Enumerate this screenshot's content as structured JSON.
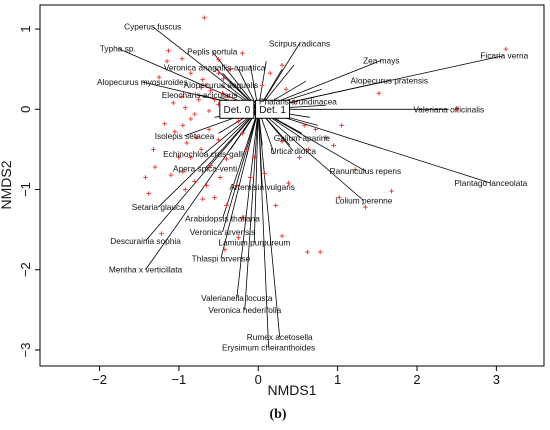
{
  "panel_caption": "(b)",
  "chart_data": {
    "type": "scatter",
    "title": "",
    "xlabel": "NMDS1",
    "ylabel": "NMDS2",
    "xlim": [
      -2.75,
      3.6
    ],
    "ylim": [
      -3.2,
      1.3
    ],
    "xticks": [
      -2,
      -1,
      0,
      1,
      2,
      3
    ],
    "yticks": [
      -3,
      -2,
      -1,
      0,
      1
    ],
    "grid": false,
    "colors": {
      "points": "#e8332e",
      "vectors": "#000000",
      "frame": "#000000"
    },
    "centroids": [
      {
        "label": "Det. 0",
        "x": -0.27,
        "y": 0.0
      },
      {
        "label": "Det. 1",
        "x": 0.18,
        "y": 0.0
      }
    ],
    "species": [
      {
        "name": "Cyperus fuscus",
        "x": -1.33,
        "y": 1.03
      },
      {
        "name": "Typha sp.",
        "x": -1.77,
        "y": 0.76
      },
      {
        "name": "Peplis portula",
        "x": -0.58,
        "y": 0.72
      },
      {
        "name": "Scirpus radicans",
        "x": 0.52,
        "y": 0.82
      },
      {
        "name": "Zea mays",
        "x": 1.55,
        "y": 0.61
      },
      {
        "name": "Ficaria verna",
        "x": 3.1,
        "y": 0.67
      },
      {
        "name": "Veronica anagallis-aquatica",
        "x": -0.55,
        "y": 0.52
      },
      {
        "name": "Alopecurus pratensis",
        "x": 1.65,
        "y": 0.36
      },
      {
        "name": "Alopecurus myosuroides",
        "x": -1.46,
        "y": 0.34
      },
      {
        "name": "Alopecurus aequalis",
        "x": -0.47,
        "y": 0.3
      },
      {
        "name": "Eleocharis acicularis",
        "x": -0.74,
        "y": 0.18
      },
      {
        "name": "Phalaris arundinacea",
        "x": 0.5,
        "y": 0.1
      },
      {
        "name": "Valeriana officinalis",
        "x": 2.4,
        "y": 0.0
      },
      {
        "name": "Isolepis setacea",
        "x": -0.93,
        "y": -0.33
      },
      {
        "name": "Galium aparine",
        "x": 0.55,
        "y": -0.36
      },
      {
        "name": "Urtica dioica",
        "x": 0.44,
        "y": -0.52
      },
      {
        "name": "Echinochloa crus-galli",
        "x": -0.69,
        "y": -0.56
      },
      {
        "name": "Apera spica-venti",
        "x": -0.67,
        "y": -0.74
      },
      {
        "name": "Ranunculus repens",
        "x": 1.35,
        "y": -0.77
      },
      {
        "name": "Plantago lanceolata",
        "x": 2.93,
        "y": -0.92
      },
      {
        "name": "Artemisia vulgaris",
        "x": 0.05,
        "y": -0.97
      },
      {
        "name": "Lolium perenne",
        "x": 1.33,
        "y": -1.14
      },
      {
        "name": "Setaria glauca",
        "x": -1.26,
        "y": -1.22
      },
      {
        "name": "Arabidopsis thaliana",
        "x": -0.45,
        "y": -1.36
      },
      {
        "name": "Veronica arvensis",
        "x": -0.45,
        "y": -1.53
      },
      {
        "name": "Descurainia sophia",
        "x": -1.42,
        "y": -1.64
      },
      {
        "name": "Lamium purpureum",
        "x": -0.05,
        "y": -1.66
      },
      {
        "name": "Thlaspi arvense",
        "x": -0.47,
        "y": -1.86
      },
      {
        "name": "Mentha x verticillata",
        "x": -1.42,
        "y": -2.0
      },
      {
        "name": "Valerianella locusta",
        "x": -0.27,
        "y": -2.35
      },
      {
        "name": "Veronica hederifolia",
        "x": -0.17,
        "y": -2.5
      },
      {
        "name": "Rumex acetosella",
        "x": 0.27,
        "y": -2.84
      },
      {
        "name": "Erysimum cheiranthoides",
        "x": 0.13,
        "y": -2.97
      }
    ],
    "displayed_species_labels": {
      "Mentha x verticillata": "Mentha x verticillata"
    },
    "points": [
      [
        -0.68,
        1.14
      ],
      [
        -1.13,
        0.73
      ],
      [
        -1.15,
        0.6
      ],
      [
        -0.96,
        0.63
      ],
      [
        -0.5,
        0.62
      ],
      [
        -0.44,
        0.38
      ],
      [
        -0.7,
        0.37
      ],
      [
        -0.66,
        0.3
      ],
      [
        -0.72,
        0.27
      ],
      [
        -0.6,
        0.23
      ],
      [
        -0.96,
        0.16
      ],
      [
        -0.92,
        0.02
      ],
      [
        -0.5,
        0.06
      ],
      [
        -0.62,
        -0.02
      ],
      [
        -0.8,
        -0.06
      ],
      [
        -0.45,
        0.2
      ],
      [
        -0.38,
        0.16
      ],
      [
        -0.3,
        0.1
      ],
      [
        -0.55,
        0.12
      ],
      [
        -0.75,
        0.12
      ],
      [
        -1.07,
        0.08
      ],
      [
        -0.85,
        -0.12
      ],
      [
        -0.95,
        -0.2
      ],
      [
        -1.05,
        -0.28
      ],
      [
        -0.9,
        -0.42
      ],
      [
        -0.78,
        -0.35
      ],
      [
        -0.62,
        -0.25
      ],
      [
        -0.5,
        -0.38
      ],
      [
        -0.72,
        -0.5
      ],
      [
        -0.85,
        -0.6
      ],
      [
        -1.0,
        -0.6
      ],
      [
        -0.95,
        -0.78
      ],
      [
        -1.1,
        -0.82
      ],
      [
        -1.3,
        -0.72
      ],
      [
        -1.42,
        -0.85
      ],
      [
        -1.38,
        -1.05
      ],
      [
        -0.92,
        -1.0
      ],
      [
        -0.8,
        -0.9
      ],
      [
        -0.65,
        -0.95
      ],
      [
        -0.55,
        -1.1
      ],
      [
        -0.7,
        -1.12
      ],
      [
        -0.4,
        -1.2
      ],
      [
        -0.2,
        -1.35
      ],
      [
        -0.27,
        -0.95
      ],
      [
        -0.1,
        -0.85
      ],
      [
        -0.05,
        -0.6
      ],
      [
        -0.15,
        -0.5
      ],
      [
        -0.2,
        -0.3
      ],
      [
        0.08,
        -0.8
      ],
      [
        0.22,
        -1.2
      ],
      [
        0.38,
        -0.92
      ],
      [
        0.52,
        -0.6
      ],
      [
        0.63,
        -0.5
      ],
      [
        0.3,
        -0.4
      ],
      [
        0.72,
        -0.25
      ],
      [
        0.58,
        -0.2
      ],
      [
        0.85,
        -0.35
      ],
      [
        0.95,
        -0.45
      ],
      [
        1.05,
        -0.2
      ],
      [
        1.22,
        -0.75
      ],
      [
        1.02,
        -1.1
      ],
      [
        1.35,
        -1.22
      ],
      [
        1.68,
        -1.02
      ],
      [
        0.62,
        -1.78
      ],
      [
        0.78,
        -1.78
      ],
      [
        0.3,
        -1.58
      ],
      [
        -0.25,
        -1.6
      ],
      [
        -0.42,
        -1.75
      ],
      [
        -1.22,
        -1.55
      ],
      [
        -0.5,
        0.45
      ],
      [
        -0.35,
        0.5
      ],
      [
        0.05,
        0.3
      ],
      [
        0.15,
        0.45
      ],
      [
        0.35,
        0.25
      ],
      [
        0.45,
        0.1
      ],
      [
        0.25,
        -0.1
      ],
      [
        -0.1,
        0.05
      ],
      [
        0.3,
        0.55
      ],
      [
        -0.2,
        0.7
      ],
      [
        3.12,
        0.75
      ],
      [
        2.5,
        0.0
      ],
      [
        1.52,
        0.2
      ],
      [
        -0.85,
        0.45
      ],
      [
        -1.25,
        0.4
      ],
      [
        -0.25,
        -0.15
      ],
      [
        -0.6,
        -0.7
      ],
      [
        -0.48,
        -0.85
      ],
      [
        -0.4,
        -0.62
      ],
      [
        -1.18,
        -0.18
      ],
      [
        -1.32,
        -0.5
      ]
    ]
  }
}
